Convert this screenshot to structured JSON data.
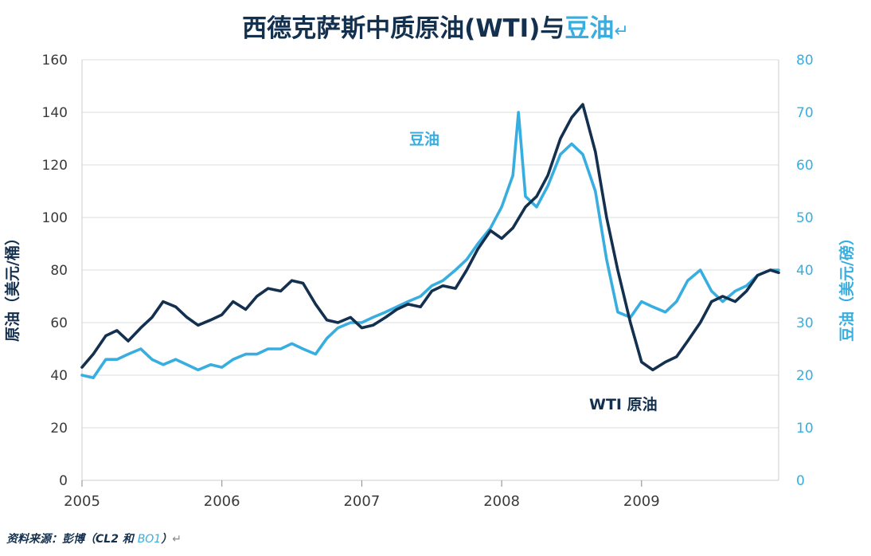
{
  "title": {
    "main": "西德克萨斯中质原油(WTI)与",
    "accent": "豆油",
    "mark": "↵"
  },
  "source": {
    "prefix": "资料来源：彭博（CL2 和 ",
    "code": "BO1",
    "suffix": "）",
    "mark": "↵"
  },
  "colors": {
    "wti": "#14304f",
    "soy": "#38aee0",
    "grid": "#d9dde2",
    "axis_text": "#3a3a3a"
  },
  "chart_data": {
    "type": "line",
    "title": "西德克萨斯中质原油(WTI)与豆油",
    "xlabel": "",
    "ylabel_left": "原油（美元/桶）",
    "ylabel_right": "豆油（美元/磅）",
    "ylim_left": [
      0,
      160
    ],
    "ylim_right": [
      0,
      80
    ],
    "y_ticks_left": [
      "0",
      "20",
      "40",
      "60",
      "80",
      "100",
      "120",
      "140",
      "160"
    ],
    "y_ticks_right": [
      "0",
      "10",
      "20",
      "30",
      "40",
      "50",
      "60",
      "70",
      "80"
    ],
    "x_range": [
      2005.0,
      2009.98
    ],
    "x_ticks": [
      "2005",
      "2006",
      "2007",
      "2008",
      "2009"
    ],
    "grid": true,
    "series": [
      {
        "name": "WTI 原油",
        "axis": "left",
        "label_text": "WTI 原油",
        "x": [
          2005.0,
          2005.08,
          2005.17,
          2005.25,
          2005.33,
          2005.42,
          2005.5,
          2005.58,
          2005.67,
          2005.75,
          2005.83,
          2005.92,
          2006.0,
          2006.08,
          2006.17,
          2006.25,
          2006.33,
          2006.42,
          2006.5,
          2006.58,
          2006.67,
          2006.75,
          2006.83,
          2006.92,
          2007.0,
          2007.08,
          2007.17,
          2007.25,
          2007.33,
          2007.42,
          2007.5,
          2007.58,
          2007.67,
          2007.75,
          2007.83,
          2007.92,
          2008.0,
          2008.08,
          2008.17,
          2008.25,
          2008.33,
          2008.42,
          2008.5,
          2008.58,
          2008.67,
          2008.75,
          2008.83,
          2008.92,
          2009.0,
          2009.08,
          2009.17,
          2009.25,
          2009.33,
          2009.42,
          2009.5,
          2009.58,
          2009.67,
          2009.75,
          2009.83,
          2009.92,
          2009.98
        ],
        "values": [
          43,
          48,
          55,
          57,
          53,
          58,
          62,
          68,
          66,
          62,
          59,
          61,
          63,
          68,
          65,
          70,
          73,
          72,
          76,
          75,
          67,
          61,
          60,
          62,
          58,
          59,
          62,
          65,
          67,
          66,
          72,
          74,
          73,
          80,
          88,
          95,
          92,
          96,
          104,
          108,
          116,
          130,
          138,
          143,
          125,
          100,
          80,
          60,
          45,
          42,
          45,
          47,
          53,
          60,
          68,
          70,
          68,
          72,
          78,
          80,
          79
        ]
      },
      {
        "name": "豆油",
        "axis": "right",
        "label_text": "豆油",
        "x": [
          2005.0,
          2005.08,
          2005.17,
          2005.25,
          2005.33,
          2005.42,
          2005.5,
          2005.58,
          2005.67,
          2005.75,
          2005.83,
          2005.92,
          2006.0,
          2006.08,
          2006.17,
          2006.25,
          2006.33,
          2006.42,
          2006.5,
          2006.58,
          2006.67,
          2006.75,
          2006.83,
          2006.92,
          2007.0,
          2007.08,
          2007.17,
          2007.25,
          2007.33,
          2007.42,
          2007.5,
          2007.58,
          2007.67,
          2007.75,
          2007.83,
          2007.92,
          2008.0,
          2008.08,
          2008.12,
          2008.17,
          2008.25,
          2008.33,
          2008.42,
          2008.5,
          2008.58,
          2008.67,
          2008.75,
          2008.83,
          2008.92,
          2009.0,
          2009.08,
          2009.17,
          2009.25,
          2009.33,
          2009.42,
          2009.5,
          2009.58,
          2009.67,
          2009.75,
          2009.83,
          2009.92,
          2009.98
        ],
        "values": [
          20,
          19.5,
          23,
          23,
          24,
          25,
          23,
          22,
          23,
          22,
          21,
          22,
          21.5,
          23,
          24,
          24,
          25,
          25,
          26,
          25,
          24,
          27,
          29,
          30,
          30,
          31,
          32,
          33,
          34,
          35,
          37,
          38,
          40,
          42,
          45,
          48,
          52,
          58,
          70,
          54,
          52,
          56,
          62,
          64,
          62,
          55,
          42,
          32,
          31,
          34,
          33,
          32,
          34,
          38,
          40,
          36,
          34,
          36,
          37,
          39,
          40,
          40
        ]
      }
    ]
  }
}
